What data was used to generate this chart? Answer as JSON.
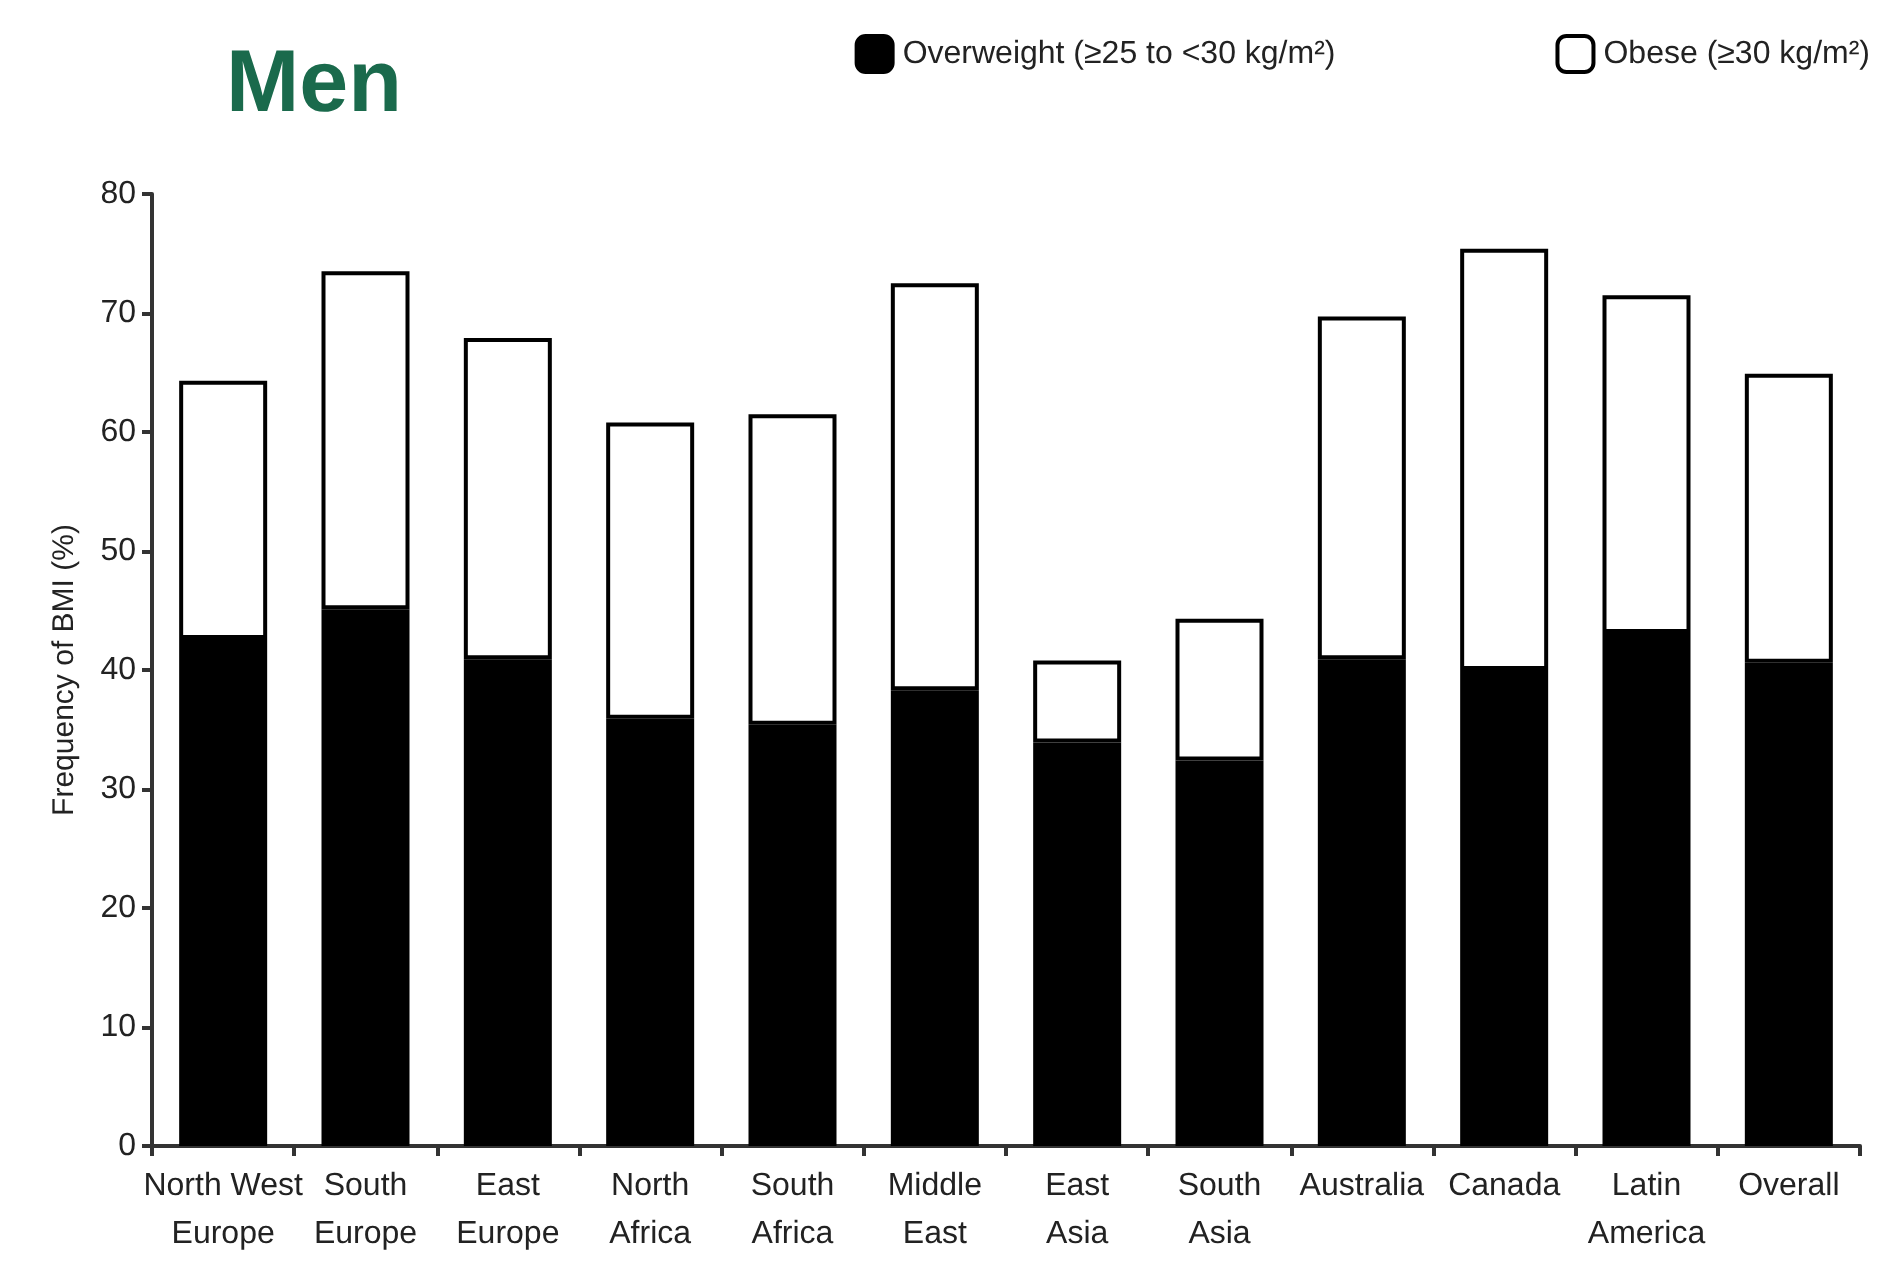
{
  "chart_data": {
    "type": "bar",
    "title": "Men",
    "ylabel": "Frequency of BMI (%)",
    "stacked": true,
    "legend": "top right",
    "grid": false,
    "categories": [
      "North West Europe",
      "South Europe",
      "East Europe",
      "North Africa",
      "South Africa",
      "Middle East",
      "East Asia",
      "South Asia",
      "Australia",
      "Canada",
      "Latin America",
      "Overall"
    ],
    "series": [
      {
        "name": "Overweight (≥25 to <30 kg/m²)",
        "color": "#000000",
        "values": [
          42.6,
          45.1,
          40.9,
          35.9,
          35.4,
          38.3,
          33.9,
          32.4,
          40.9,
          40.0,
          43.1,
          40.6
        ]
      },
      {
        "name": "Obese (≥30 kg/m²)",
        "color": "#ffffff",
        "values": [
          21.7,
          28.4,
          27.0,
          24.9,
          26.1,
          34.2,
          6.9,
          11.9,
          28.8,
          35.4,
          28.4,
          24.3
        ]
      }
    ],
    "ylim": [
      0,
      80
    ],
    "yticks": [
      0,
      10,
      20,
      30,
      40,
      50,
      60,
      70,
      80
    ]
  }
}
